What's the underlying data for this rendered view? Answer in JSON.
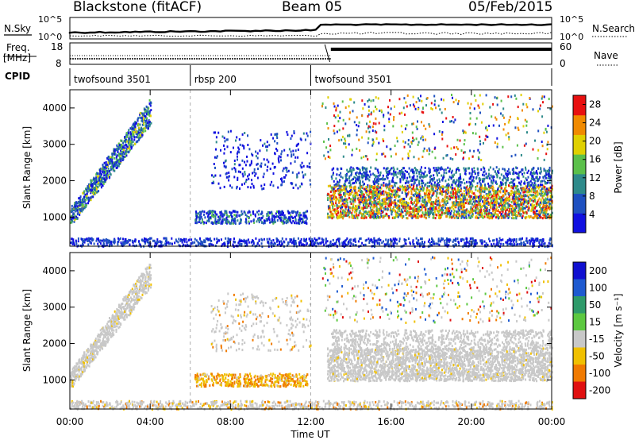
{
  "header": {
    "station": "Blackstone (fitACF)",
    "beam": "Beam 05",
    "date": "05/Feb/2015"
  },
  "top_panel": {
    "left_label": "N.Sky",
    "left_ticks": [
      "10^5",
      "10^0"
    ],
    "right_label": "N.Search",
    "right_ticks": [
      "10^5",
      "10^0"
    ]
  },
  "freq_panel": {
    "left_label_1": "Freq.",
    "left_label_2": "[MHz]",
    "left_ticks": [
      "18",
      "8"
    ],
    "right_label": "Nave",
    "right_ticks": [
      "60",
      "0"
    ]
  },
  "cpid": {
    "label": "CPID",
    "segments": [
      {
        "name": "twofsound 3501",
        "start_hour": 0,
        "end_hour": 6
      },
      {
        "name": "rbsp 200",
        "start_hour": 6,
        "end_hour": 12
      },
      {
        "name": "twofsound 3501",
        "start_hour": 12,
        "end_hour": 24
      }
    ]
  },
  "x_axis": {
    "label": "Time UT",
    "ticks": [
      "00:00",
      "04:00",
      "08:00",
      "12:00",
      "16:00",
      "20:00",
      "00:00"
    ]
  },
  "chart_data": [
    {
      "type": "heatmap",
      "name": "Power",
      "ylabel": "Slant Range [km]",
      "yticks": [
        1000,
        2000,
        3000,
        4000
      ],
      "ylim": [
        200,
        4500
      ],
      "xlim_hours": [
        0,
        24
      ],
      "colorbar": {
        "label": "Power [dB]",
        "ticks": [
          4,
          8,
          12,
          16,
          20,
          24,
          28
        ],
        "range": [
          0,
          30
        ],
        "colors": [
          "#1010e0",
          "#1e50c0",
          "#2e8a8a",
          "#5bc04a",
          "#e0d000",
          "#f08a00",
          "#e81010"
        ]
      }
    },
    {
      "type": "heatmap",
      "name": "Velocity",
      "ylabel": "Slant Range [km]",
      "yticks": [
        1000,
        2000,
        3000,
        4000
      ],
      "ylim": [
        200,
        4500
      ],
      "xlim_hours": [
        0,
        24
      ],
      "colorbar": {
        "label": "Velocity [m s⁻¹]",
        "ticks": [
          "200",
          "100",
          "50",
          "15",
          "-15",
          "-50",
          "-100",
          "-200"
        ],
        "colors": [
          "#1010d0",
          "#1e5ad0",
          "#2e9a6a",
          "#5cc840",
          "#c8c8c8",
          "#f0c000",
          "#f07a00",
          "#e01010"
        ]
      }
    }
  ]
}
